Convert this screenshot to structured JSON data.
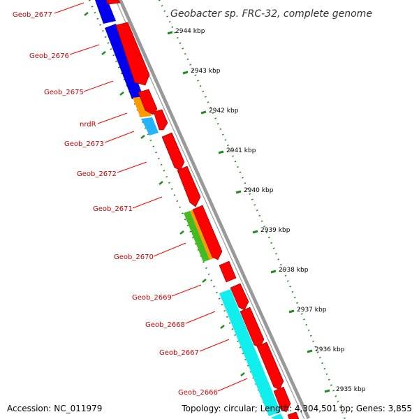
{
  "title": "Geobacter sp. FRC-32, complete genome",
  "footer": {
    "accession": "Accession: NC_011979",
    "summary": "Topology: circular; Length: 4,304,501 bp; Genes: 3,855"
  },
  "colors": {
    "background": "#ffffff",
    "backbone": "#999999",
    "forward_gene": "#ff0000",
    "label_text": "#cc0000",
    "label_line": "#ff0000",
    "kbp_tick": "#228b22",
    "blue_gene": "#0000ee",
    "orange_gene": "#ff9900",
    "lightblue_gene": "#22b4ff",
    "green_gene": "#44bb22",
    "cyan_gene": "#11eeee"
  },
  "gene_labels": [
    "Geob_2677",
    "Geob_2676",
    "Geob_2675",
    "nrdR",
    "Geob_2673",
    "Geob_2672",
    "Geob_2671",
    "Geob_2670",
    "Geob_2669",
    "Geob_2668",
    "Geob_2667",
    "Geob_2666"
  ],
  "kbp_labels": [
    "2944 kbp",
    "2943 kbp",
    "2942 kbp",
    "2941 kbp",
    "2940 kbp",
    "2939 kbp",
    "2938 kbp",
    "2937 kbp",
    "2936 kbp",
    "2935 kbp"
  ]
}
